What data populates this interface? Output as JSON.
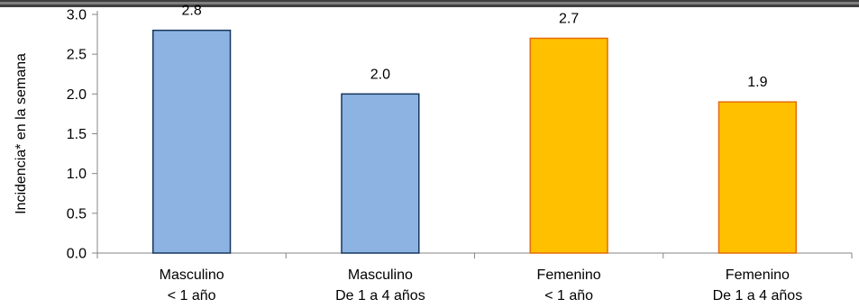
{
  "chart_data": {
    "type": "bar",
    "title": "",
    "ylabel": "Incidencia* en la semana",
    "xlabel": "",
    "ylim": [
      0,
      3.0
    ],
    "yticks": [
      "0.0",
      "0.5",
      "1.0",
      "1.5",
      "2.0",
      "2.5",
      "3.0"
    ],
    "grid": false,
    "legend": "none",
    "categories": [
      [
        "Masculino",
        "< 1 año"
      ],
      [
        "Masculino",
        "De 1 a 4 años"
      ],
      [
        "Femenino",
        "< 1 año"
      ],
      [
        "Femenino",
        "De 1 a 4 años"
      ]
    ],
    "values": [
      2.8,
      2.0,
      2.7,
      1.9
    ],
    "value_labels": [
      "2.8",
      "2.0",
      "2.7",
      "1.9"
    ],
    "colors": {
      "fill": [
        "#8DB3E2",
        "#8DB3E2",
        "#FFC000",
        "#FFC000"
      ],
      "stroke": [
        "#17375E",
        "#17375E",
        "#E46C0A",
        "#E46C0A"
      ],
      "frame": "#3F3F3F"
    }
  }
}
